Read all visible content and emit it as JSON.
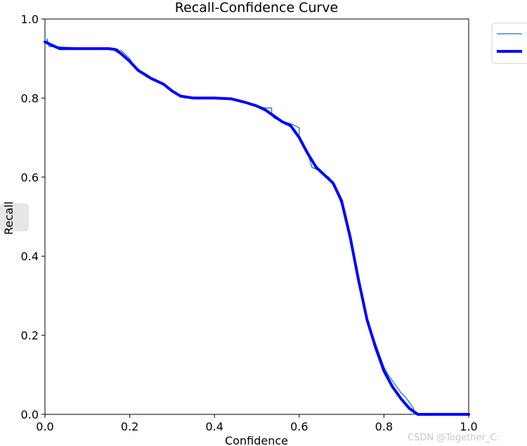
{
  "chart_data": {
    "type": "line",
    "title": "Recall-Confidence Curve",
    "xlabel": "Confidence",
    "ylabel": "Recall",
    "xlim": [
      0.0,
      1.0
    ],
    "ylim": [
      0.0,
      1.0
    ],
    "x_ticks": [
      "0.0",
      "0.2",
      "0.4",
      "0.6",
      "0.8",
      "1.0"
    ],
    "y_ticks": [
      "0.0",
      "0.2",
      "0.4",
      "0.6",
      "0.8",
      "1.0"
    ],
    "grid": false,
    "legend_position": "outside-top-right",
    "series": [
      {
        "color": "#1f77b4",
        "style": "thin",
        "x": [
          0.0,
          0.005,
          0.005,
          0.01,
          0.03,
          0.1,
          0.15,
          0.17,
          0.175,
          0.18,
          0.2,
          0.21,
          0.215,
          0.24,
          0.26,
          0.28,
          0.3,
          0.32,
          0.33,
          0.35,
          0.4,
          0.45,
          0.5,
          0.52,
          0.535,
          0.535,
          0.54,
          0.55,
          0.58,
          0.6,
          0.6,
          0.62,
          0.63,
          0.65,
          0.66,
          0.67,
          0.68,
          0.69,
          0.7,
          0.72,
          0.74,
          0.76,
          0.78,
          0.8,
          0.81,
          0.82,
          0.83,
          0.84,
          0.85,
          0.86,
          0.87,
          0.87,
          0.88,
          0.9,
          1.0
        ],
        "y": [
          0.94,
          0.94,
          0.95,
          0.93,
          0.93,
          0.925,
          0.925,
          0.925,
          0.92,
          0.92,
          0.9,
          0.88,
          0.875,
          0.86,
          0.845,
          0.835,
          0.82,
          0.805,
          0.8,
          0.8,
          0.8,
          0.795,
          0.78,
          0.775,
          0.775,
          0.76,
          0.75,
          0.745,
          0.735,
          0.725,
          0.7,
          0.66,
          0.625,
          0.615,
          0.605,
          0.6,
          0.58,
          0.56,
          0.53,
          0.44,
          0.33,
          0.24,
          0.18,
          0.12,
          0.1,
          0.085,
          0.07,
          0.055,
          0.045,
          0.03,
          0.015,
          0.0,
          0.0,
          0.0,
          0.0
        ]
      },
      {
        "color": "#0000ff",
        "style": "thick",
        "x": [
          0.0,
          0.02,
          0.035,
          0.1,
          0.15,
          0.165,
          0.18,
          0.2,
          0.22,
          0.25,
          0.28,
          0.3,
          0.32,
          0.35,
          0.4,
          0.44,
          0.47,
          0.5,
          0.52,
          0.54,
          0.56,
          0.58,
          0.6,
          0.62,
          0.64,
          0.66,
          0.68,
          0.7,
          0.72,
          0.74,
          0.76,
          0.78,
          0.8,
          0.82,
          0.84,
          0.86,
          0.88,
          0.9,
          0.95,
          1.0
        ],
        "y": [
          0.942,
          0.932,
          0.925,
          0.925,
          0.925,
          0.923,
          0.912,
          0.893,
          0.87,
          0.85,
          0.835,
          0.818,
          0.805,
          0.8,
          0.8,
          0.798,
          0.79,
          0.78,
          0.77,
          0.755,
          0.74,
          0.73,
          0.7,
          0.66,
          0.625,
          0.605,
          0.585,
          0.54,
          0.45,
          0.34,
          0.24,
          0.17,
          0.11,
          0.07,
          0.04,
          0.015,
          0.0,
          0.0,
          0.0,
          0.0
        ]
      }
    ]
  },
  "watermark": "CSDN @Together_C:"
}
